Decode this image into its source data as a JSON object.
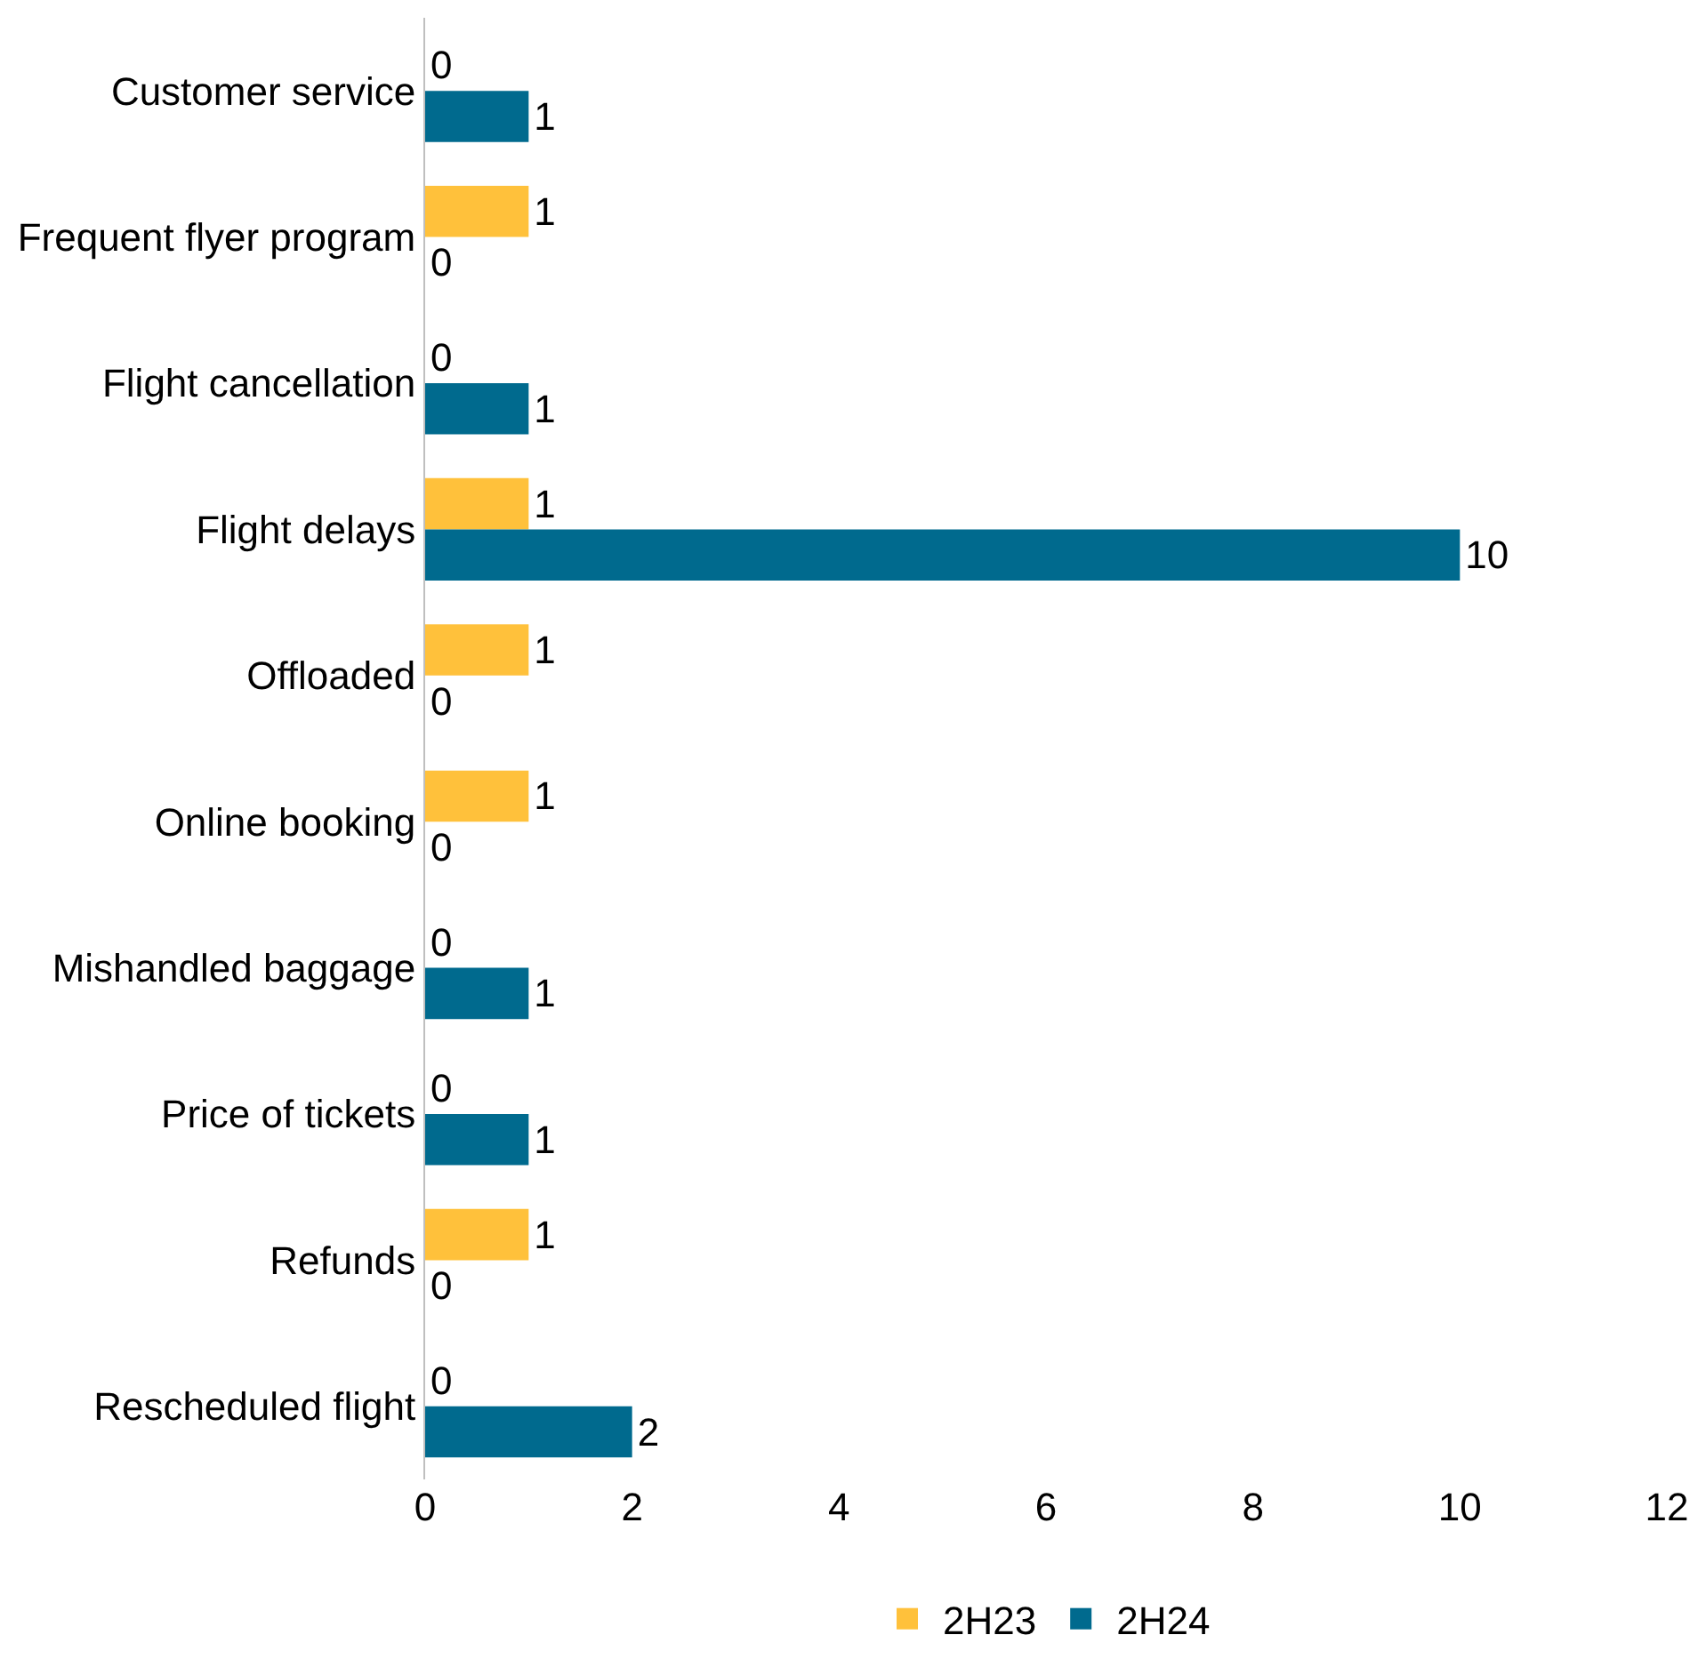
{
  "chart_data": {
    "type": "bar",
    "orientation": "horizontal",
    "categories": [
      "Customer service",
      "Frequent flyer program",
      "Flight cancellation",
      "Flight delays",
      "Offloaded",
      "Online booking",
      "Mishandled baggage",
      "Price of tickets",
      "Refunds",
      "Rescheduled flight"
    ],
    "series": [
      {
        "name": "2H23",
        "color": "#ffc13b",
        "values": [
          0,
          1,
          0,
          1,
          1,
          1,
          0,
          0,
          1,
          0
        ]
      },
      {
        "name": "2H24",
        "color": "#006a8e",
        "values": [
          1,
          0,
          1,
          10,
          0,
          0,
          1,
          1,
          0,
          2
        ]
      }
    ],
    "xlim": [
      0,
      12
    ],
    "xticks": [
      0,
      2,
      4,
      6,
      8,
      10,
      12
    ],
    "data_labels": true,
    "legend": "bottom"
  }
}
